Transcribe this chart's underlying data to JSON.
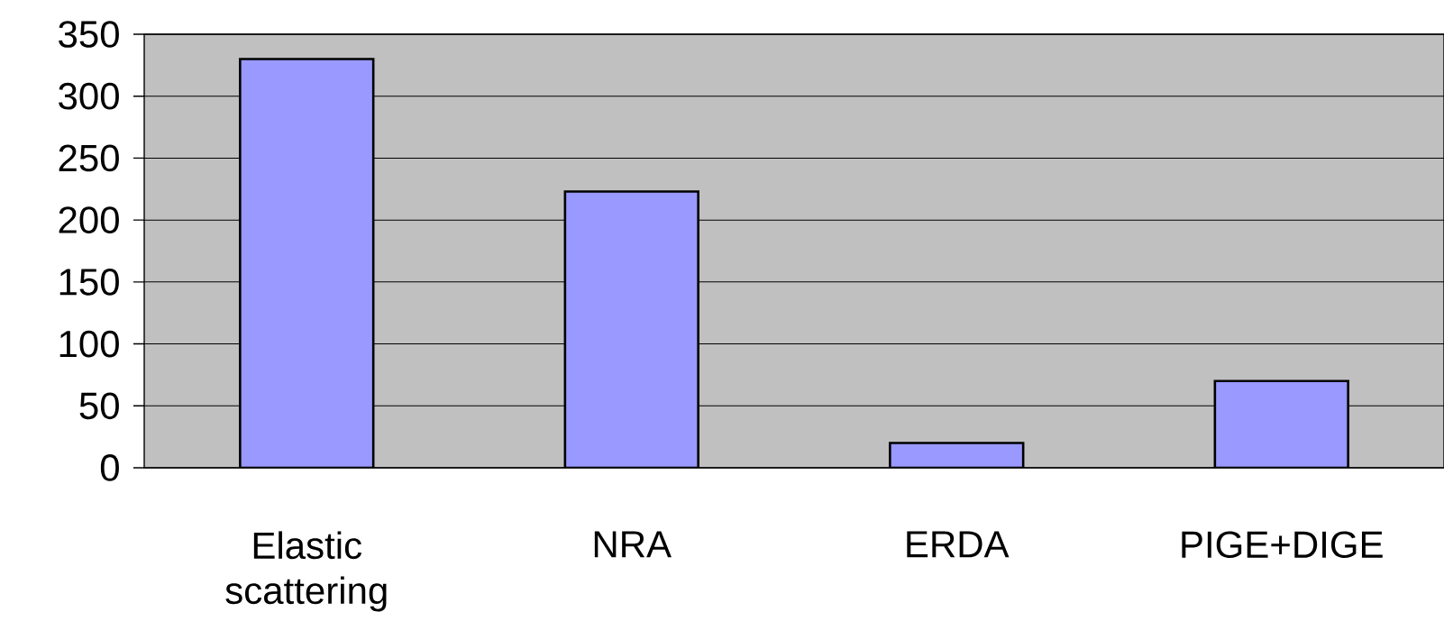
{
  "chart_data": {
    "type": "bar",
    "categories": [
      "Elastic scattering",
      "NRA",
      "ERDA",
      "PIGE+DIGE"
    ],
    "values": [
      330,
      223,
      20,
      70
    ],
    "color": "#9999ff",
    "ylim": [
      0,
      350
    ],
    "yticks": [
      0,
      50,
      100,
      150,
      200,
      250,
      300,
      350
    ],
    "grid": "y"
  }
}
